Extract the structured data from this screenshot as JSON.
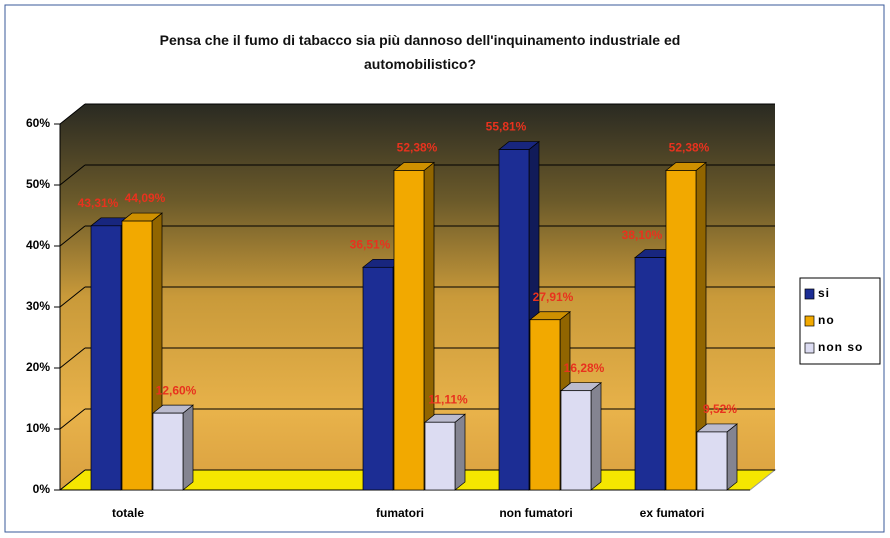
{
  "chart_data": {
    "type": "bar3d",
    "title": "Pensa che il fumo di tabacco sia più dannoso dell'inquinamento industriale ed automobilistico?",
    "categories": [
      "totale",
      null,
      "fumatori",
      "non fumatori",
      "ex fumatori"
    ],
    "series": [
      {
        "name": "si",
        "color": "#1c2d94",
        "values": [
          43.31,
          null,
          36.51,
          55.81,
          38.1
        ],
        "value_labels": [
          "43,31%",
          null,
          "36,51%",
          "55,81%",
          "38,10%"
        ]
      },
      {
        "name": "no",
        "color": "#f2a900",
        "values": [
          44.09,
          null,
          52.38,
          27.91,
          52.38
        ],
        "value_labels": [
          "44,09%",
          null,
          "52,38%",
          "27,91%",
          "52,38%"
        ]
      },
      {
        "name": "non so",
        "color": "#dcdcf2",
        "values": [
          12.6,
          null,
          11.11,
          16.28,
          9.52
        ],
        "value_labels": [
          "12,60%",
          null,
          "11,11%",
          "16,28%",
          "9,52%"
        ]
      }
    ],
    "ylim": [
      0,
      60
    ],
    "yticks": [
      {
        "value": 0,
        "label": "0%"
      },
      {
        "value": 10,
        "label": "10%"
      },
      {
        "value": 20,
        "label": "20%"
      },
      {
        "value": 30,
        "label": "30%"
      },
      {
        "value": 40,
        "label": "40%"
      },
      {
        "value": 50,
        "label": "50%"
      },
      {
        "value": 60,
        "label": "60%"
      }
    ],
    "grid": true
  }
}
